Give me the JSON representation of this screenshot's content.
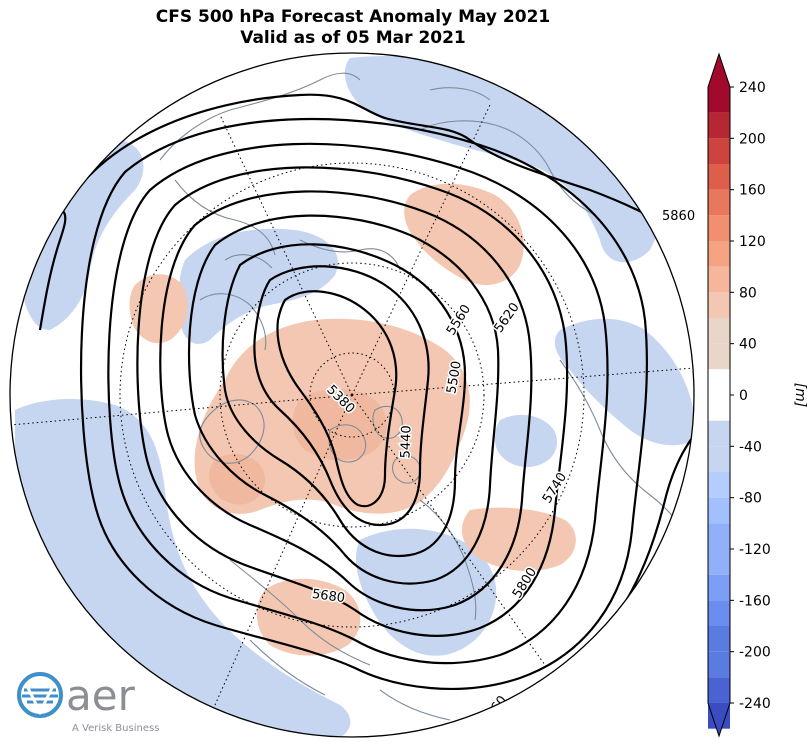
{
  "title": {
    "line1": "CFS 500 hPa Forecast Anomaly May 2021",
    "line2": "Valid as of 05 Mar 2021"
  },
  "colorbar": {
    "label": "[m]",
    "ticks": [
      240,
      200,
      160,
      120,
      80,
      40,
      0,
      -40,
      -80,
      -120,
      -160,
      -200,
      -240
    ],
    "ticklabels": [
      "240",
      "200",
      "160",
      "120",
      "80",
      "40",
      "0",
      "-40",
      "-80",
      "-120",
      "-160",
      "-200",
      "-240"
    ],
    "levels_neg": [
      "#3b4cc0",
      "#4a63d3",
      "#5a7be0",
      "#6b8df0",
      "#7d9ef7",
      "#90b0fb",
      "#a3c0fe",
      "#b5cdfd",
      "#c6d6f1"
    ],
    "levels_pos": [
      "#ead5c9",
      "#f3c7b1",
      "#f6b69b",
      "#f5a383",
      "#f18f6e",
      "#e8775c",
      "#dc5e4b",
      "#cc443d",
      "#b72733",
      "#a10a2a"
    ],
    "zero_color": "#ffffff"
  },
  "contour_labels": [
    {
      "text": "5380"
    },
    {
      "text": "5440"
    },
    {
      "text": "5500"
    },
    {
      "text": "5560"
    },
    {
      "text": "5620"
    },
    {
      "text": "5680"
    },
    {
      "text": "5740"
    },
    {
      "text": "5800"
    },
    {
      "text": "5860"
    },
    {
      "text": "5860"
    }
  ],
  "logo": {
    "name": "aer",
    "tagline": "A Verisk Business",
    "colors": {
      "blue": "#3f8fc8",
      "gray": "#8a8f96"
    }
  },
  "colors": {
    "positive_anomaly": "#f3c7b1",
    "negative_anomaly": "#c6d6f1",
    "coastline": "#7d8c99",
    "contour": "#000000"
  }
}
